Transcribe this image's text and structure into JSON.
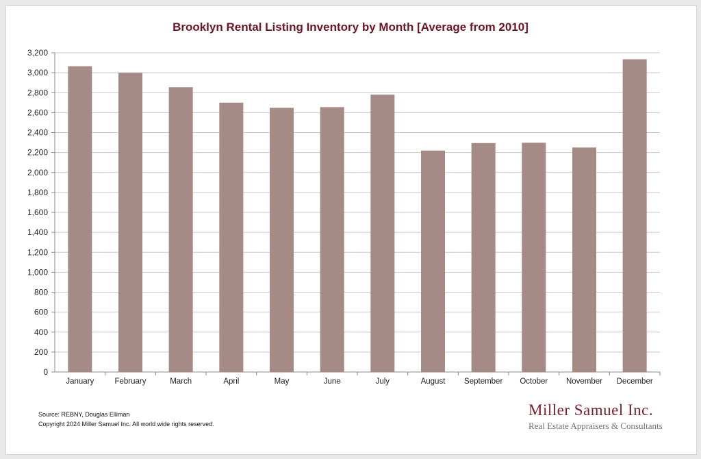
{
  "chart_data": {
    "type": "bar",
    "title": "Brooklyn Rental Listing Inventory by Month [Average from 2010]",
    "categories": [
      "January",
      "February",
      "March",
      "April",
      "May",
      "June",
      "July",
      "August",
      "September",
      "October",
      "November",
      "December"
    ],
    "values": [
      3065,
      3000,
      2855,
      2700,
      2648,
      2655,
      2780,
      2220,
      2295,
      2298,
      2250,
      3135
    ],
    "ylim": [
      0,
      3200
    ],
    "yticks": [
      "0",
      "200",
      "400",
      "600",
      "800",
      "1,000",
      "1,200",
      "1,400",
      "1,600",
      "1,800",
      "2,000",
      "2,200",
      "2,400",
      "2,600",
      "2,800",
      "3,000",
      "3,200"
    ],
    "ytick_values": [
      0,
      200,
      400,
      600,
      800,
      1000,
      1200,
      1400,
      1600,
      1800,
      2000,
      2200,
      2400,
      2600,
      2800,
      3000,
      3200
    ],
    "grid": true,
    "bar_color": "#a68a86",
    "xlabel": "",
    "ylabel": ""
  },
  "footer": {
    "source": "Source: REBNY, Douglas Elliman",
    "copyright": "Copyright 2024 Miller Samuel Inc.  All world wide rights reserved."
  },
  "logo": {
    "name": "Miller Samuel Inc.",
    "tagline": "Real Estate Appraisers & Consultants"
  },
  "colors": {
    "title": "#6e1423",
    "brand": "#7b1d2a",
    "bar": "#a68a86"
  }
}
